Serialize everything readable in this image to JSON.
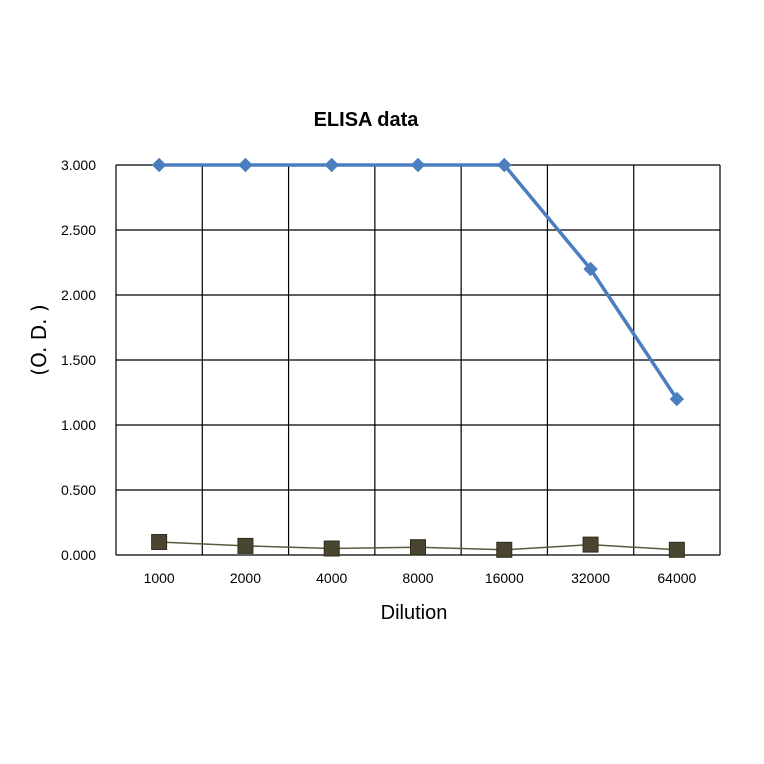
{
  "chart_data": {
    "type": "line",
    "title": "ELISA data",
    "xlabel": "Dilution",
    "ylabel": "(O. D. )",
    "categories": [
      "1000",
      "2000",
      "4000",
      "8000",
      "16000",
      "32000",
      "64000"
    ],
    "yticks": [
      "0.000",
      "0.500",
      "1.000",
      "1.500",
      "2.000",
      "2.500",
      "3.000"
    ],
    "ylim": [
      0,
      3
    ],
    "grid": true,
    "legend": "none",
    "series": [
      {
        "color": "#4a7ebf",
        "marker": "diamond",
        "values": [
          3.0,
          3.0,
          3.0,
          3.0,
          3.0,
          2.2,
          1.2
        ]
      },
      {
        "color": "#4a4530",
        "marker": "square",
        "values": [
          0.1,
          0.07,
          0.05,
          0.06,
          0.04,
          0.08,
          0.04
        ]
      }
    ]
  }
}
